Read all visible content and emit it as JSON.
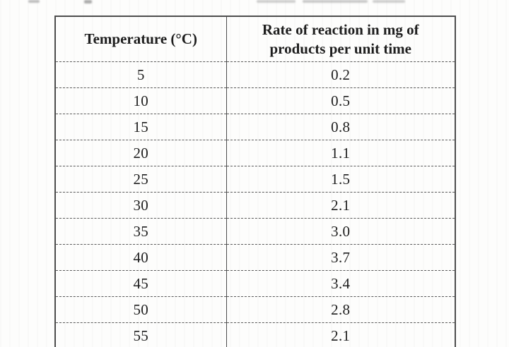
{
  "document": {
    "kind": "scanned printed table"
  },
  "table": {
    "header": {
      "temperature": "Temperature (°C)",
      "rate_line1": "Rate of reaction in mg of",
      "rate_line2": "products per unit time"
    },
    "rows": [
      {
        "temperature": "5",
        "rate": "0.2"
      },
      {
        "temperature": "10",
        "rate": "0.5"
      },
      {
        "temperature": "15",
        "rate": "0.8"
      },
      {
        "temperature": "20",
        "rate": "1.1"
      },
      {
        "temperature": "25",
        "rate": "1.5"
      },
      {
        "temperature": "30",
        "rate": "2.1"
      },
      {
        "temperature": "35",
        "rate": "3.0"
      },
      {
        "temperature": "40",
        "rate": "3.7"
      },
      {
        "temperature": "45",
        "rate": "3.4"
      },
      {
        "temperature": "50",
        "rate": "2.8"
      },
      {
        "temperature": "55",
        "rate": "2.1"
      }
    ]
  },
  "colors": {
    "ink": "#1e1e1e",
    "table_line": "#4d4d4d",
    "paper": "#fdfdfc"
  }
}
